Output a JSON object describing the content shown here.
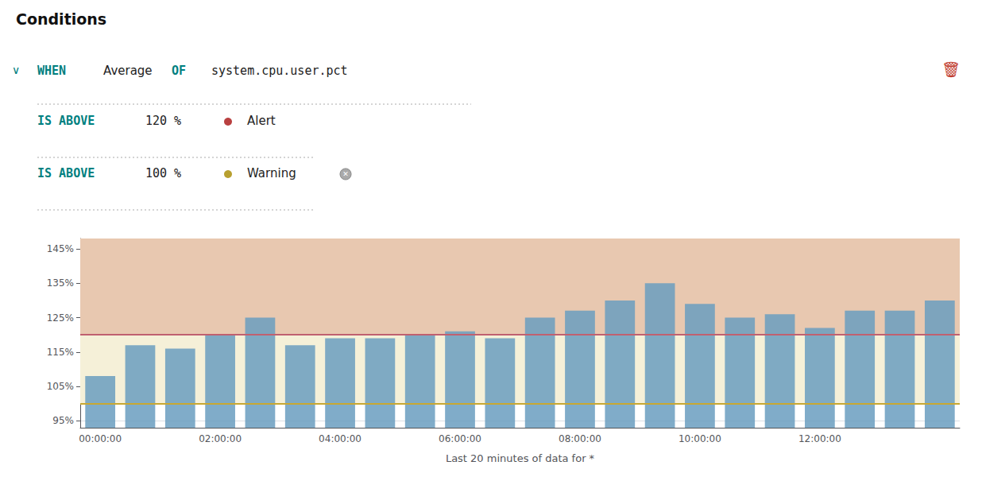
{
  "chart_data": {
    "type": "bar",
    "title": "Conditions",
    "annotations": {
      "header": [
        "∨",
        "WHEN",
        "Average",
        "OF",
        "system.cpu.user.pct"
      ],
      "threshold_keyword": "IS ABOVE",
      "delete_icon": "🗑",
      "delete_icon_color": "#c0392b",
      "keyword_color": "#008080"
    },
    "thresholds": [
      {
        "name": "Alert",
        "value": 120,
        "label": "120 %",
        "color": "#c06070",
        "marker_color": "#b94040",
        "region_color": "#e8c8b0"
      },
      {
        "name": "Warning",
        "value": 100,
        "label": "100 %",
        "color": "#c8a832",
        "marker_color": "#b8a030",
        "region_color": "#f5f0d8",
        "icon": "✕"
      }
    ],
    "categories": [
      "00:00:00",
      null,
      null,
      "02:00:00",
      null,
      null,
      "04:00:00",
      null,
      null,
      "06:00:00",
      null,
      null,
      "08:00:00",
      null,
      null,
      "10:00:00",
      null,
      null,
      "12:00:00",
      null,
      null,
      null
    ],
    "values": [
      108,
      117,
      116,
      120,
      125,
      117,
      119,
      119,
      120,
      121,
      119,
      125,
      127,
      130,
      135,
      129,
      125,
      126,
      122,
      127,
      127,
      130
    ],
    "color": "#6a9dc0",
    "xlabel": "Last 20 minutes of data for *",
    "ylim": [
      93,
      148
    ],
    "yticks": [
      {
        "value": 95,
        "label": "95%"
      },
      {
        "value": 105,
        "label": "105%"
      },
      {
        "value": 115,
        "label": "115%"
      },
      {
        "value": 125,
        "label": "125%"
      },
      {
        "value": 135,
        "label": "135%"
      },
      {
        "value": 145,
        "label": "145%"
      }
    ],
    "grid": true
  }
}
